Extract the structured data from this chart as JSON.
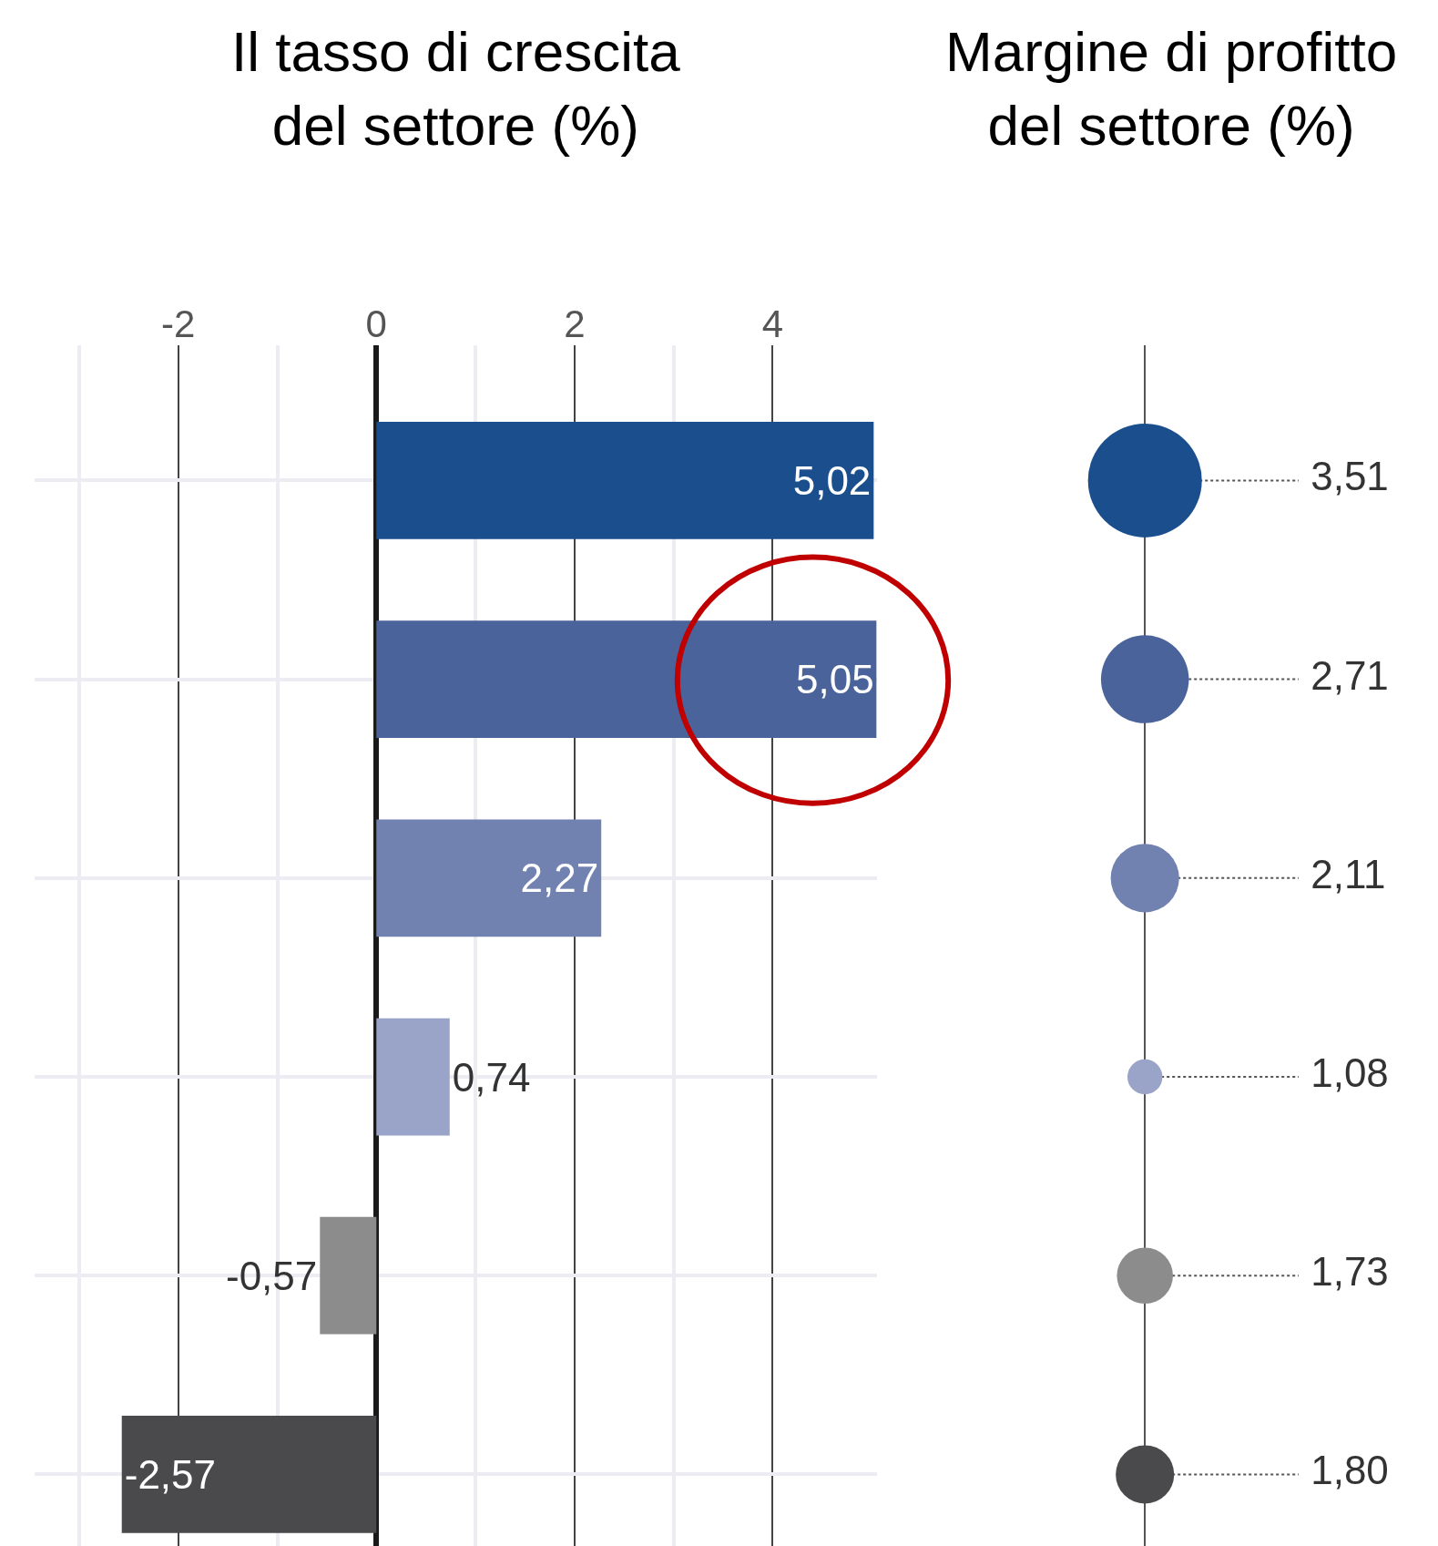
{
  "chart_data": [
    {
      "type": "bar",
      "orientation": "horizontal",
      "title": "Il tasso di crescita\ndel settore (%)",
      "categories": [
        null,
        null,
        null,
        null,
        null,
        null
      ],
      "values": [
        5.02,
        5.05,
        2.27,
        0.74,
        -0.57,
        -2.57
      ],
      "colors": [
        "#1a4e8c",
        "#4a639a",
        "#7282b0",
        "#9aa3c8",
        "#8c8c8c",
        "#4a4a4d"
      ],
      "value_labels": [
        "5,02",
        "5,05",
        "2,27",
        "0,74",
        "-0,57",
        "-2,57"
      ],
      "xlim": [
        -3.45,
        5.05
      ],
      "xticks": [
        {
          "value": -3,
          "label": null
        },
        -2,
        {
          "value": -1,
          "label": null
        },
        0,
        {
          "value": 1,
          "label": null
        },
        2,
        {
          "value": 3,
          "label": null
        },
        4
      ],
      "grid": true,
      "tick_labels": "x"
    },
    {
      "type": "other",
      "title": "Margine di profitto\ndel settore (%)",
      "categories": [
        null,
        null,
        null,
        null,
        null,
        null
      ],
      "values": [
        3.51,
        2.71,
        2.11,
        1.08,
        1.73,
        1.8
      ],
      "value_labels": [
        "3,51",
        "2,71",
        "2,11",
        "1,08",
        "1,73",
        "1,80"
      ],
      "colors": [
        "#1a4e8c",
        "#4a639a",
        "#7282b0",
        "#9aa3c8",
        "#8c8c8c",
        "#4a4a4d"
      ]
    }
  ]
}
